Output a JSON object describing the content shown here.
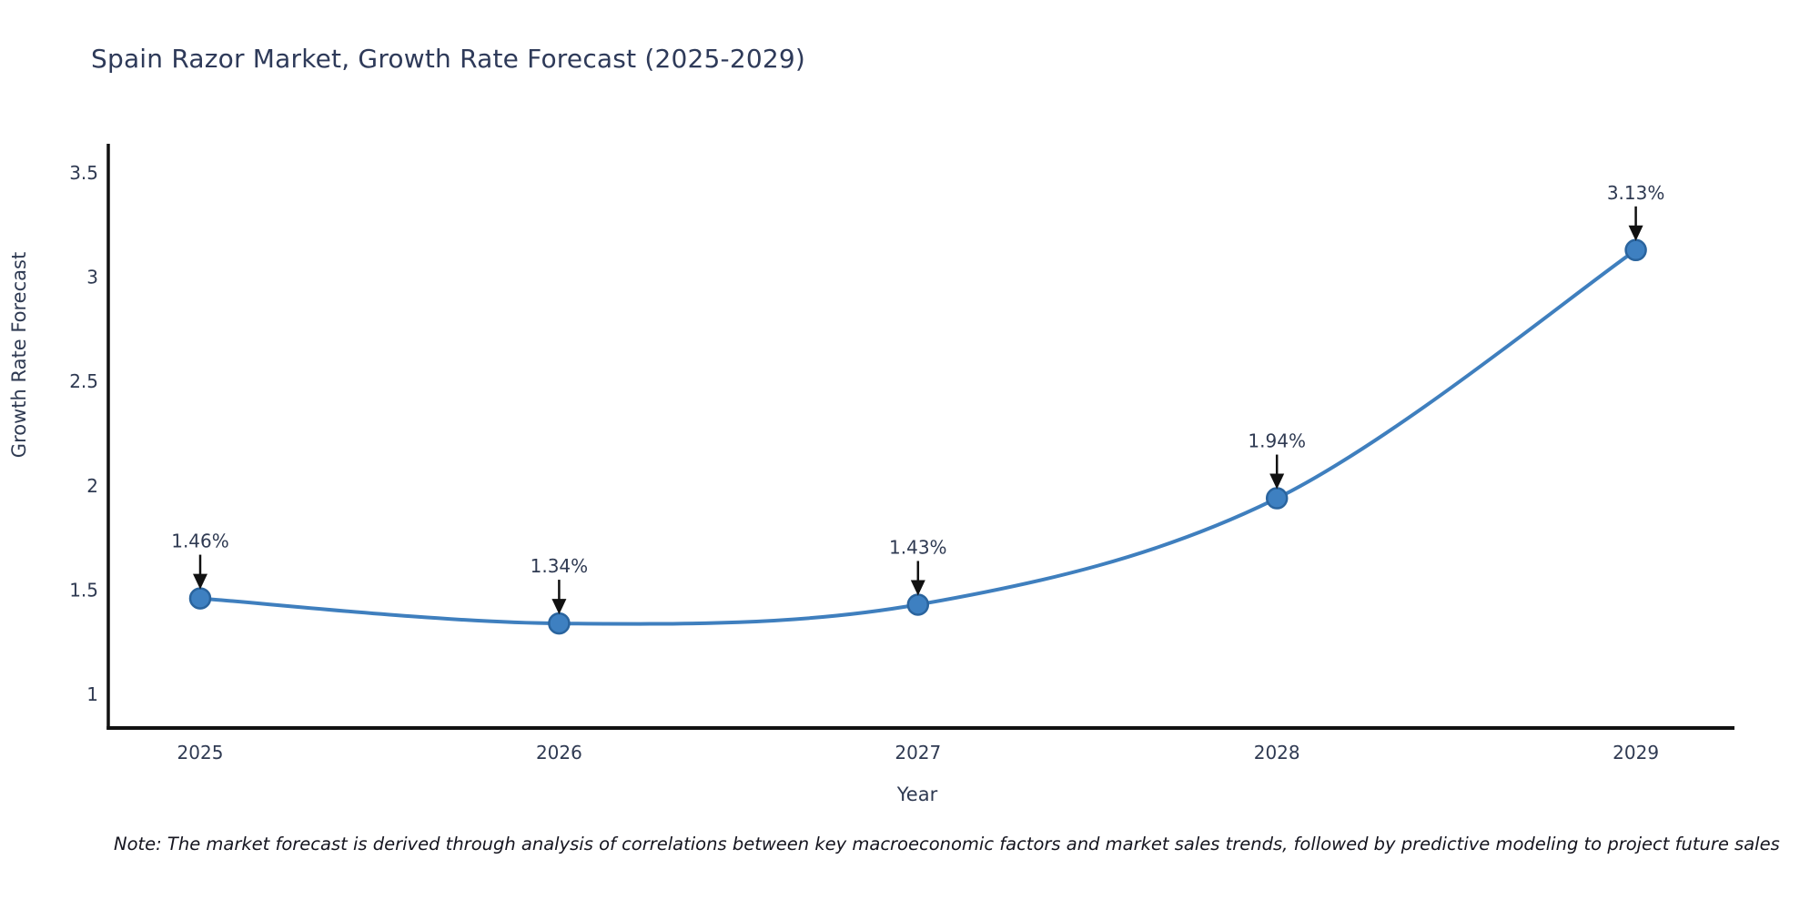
{
  "title": "Spain Razor Market, Growth Rate Forecast (2025-2029)",
  "note": "Note: The market forecast is derived through analysis of correlations between key macroeconomic factors and market sales trends, followed by predictive modeling to project future sales",
  "chart_data": {
    "type": "line",
    "title": "Spain Razor Market, Growth Rate Forecast (2025-2029)",
    "x": [
      2025,
      2026,
      2027,
      2028,
      2029
    ],
    "x_tick_labels": [
      "2025",
      "2026",
      "2027",
      "2028",
      "2029"
    ],
    "series": [
      {
        "name": "Growth Rate Forecast",
        "values": [
          1.46,
          1.34,
          1.43,
          1.94,
          3.13
        ],
        "point_labels": [
          "1.46%",
          "1.34%",
          "1.43%",
          "1.94%",
          "3.13%"
        ]
      }
    ],
    "xlabel": "Year",
    "ylabel": "Growth Rate Forecast",
    "yticks": [
      1,
      1.5,
      2,
      2.5,
      3,
      3.5
    ],
    "ytick_labels": [
      "1",
      "1.5",
      "2",
      "2.5",
      "3",
      "3.5"
    ],
    "ylim": [
      0.84,
      3.63
    ],
    "grid": false,
    "legend": false,
    "line_shape": "spline",
    "annotation_style": "value-label-with-down-arrow",
    "colors": {
      "line": "#3f7fbe",
      "marker_fill": "#3e80c1",
      "marker_edge": "#2a649e",
      "text": "#2f3a52",
      "title_text": "#2e3a59",
      "axis_spine": "#111111",
      "arrow": "#111111",
      "note_text": "#15151f",
      "background": "#ffffff"
    }
  }
}
